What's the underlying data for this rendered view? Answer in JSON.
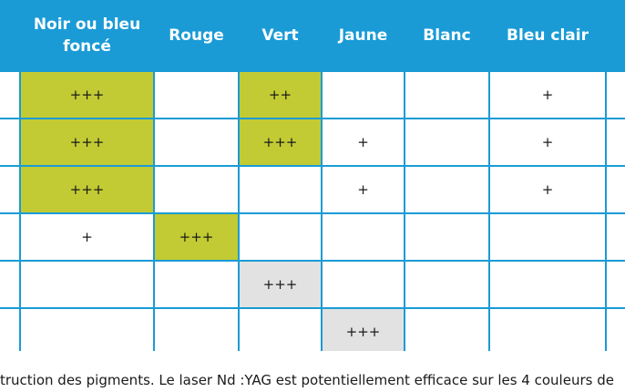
{
  "table": {
    "headers": [
      "Noir ou bleu foncé",
      "Rouge",
      "Vert",
      "Jaune",
      "Blanc",
      "Bleu clair"
    ],
    "rows": [
      [
        {
          "text": "+++",
          "fill": "green"
        },
        {
          "text": "",
          "fill": "white"
        },
        {
          "text": "++",
          "fill": "green"
        },
        {
          "text": "",
          "fill": "white"
        },
        {
          "text": "",
          "fill": "white"
        },
        {
          "text": "+",
          "fill": "white"
        }
      ],
      [
        {
          "text": "+++",
          "fill": "green"
        },
        {
          "text": "",
          "fill": "white"
        },
        {
          "text": "+++",
          "fill": "green"
        },
        {
          "text": "+",
          "fill": "white"
        },
        {
          "text": "",
          "fill": "white"
        },
        {
          "text": "+",
          "fill": "white"
        }
      ],
      [
        {
          "text": "+++",
          "fill": "green"
        },
        {
          "text": "",
          "fill": "white"
        },
        {
          "text": "",
          "fill": "white"
        },
        {
          "text": "+",
          "fill": "white"
        },
        {
          "text": "",
          "fill": "white"
        },
        {
          "text": "+",
          "fill": "white"
        }
      ],
      [
        {
          "text": "+",
          "fill": "white"
        },
        {
          "text": "+++",
          "fill": "green"
        },
        {
          "text": "",
          "fill": "white"
        },
        {
          "text": "",
          "fill": "white"
        },
        {
          "text": "",
          "fill": "white"
        },
        {
          "text": "",
          "fill": "white"
        }
      ],
      [
        {
          "text": "",
          "fill": "white"
        },
        {
          "text": "",
          "fill": "white"
        },
        {
          "text": "+++",
          "fill": "grey"
        },
        {
          "text": "",
          "fill": "white"
        },
        {
          "text": "",
          "fill": "white"
        },
        {
          "text": "",
          "fill": "white"
        }
      ],
      [
        {
          "text": "",
          "fill": "white"
        },
        {
          "text": "",
          "fill": "white"
        },
        {
          "text": "",
          "fill": "white"
        },
        {
          "text": "+++",
          "fill": "grey"
        },
        {
          "text": "",
          "fill": "white"
        },
        {
          "text": "",
          "fill": "white"
        }
      ]
    ]
  },
  "caption": "truction des pigments. Le laser Nd :YAG est potentiellement efficace sur les 4 couleurs de",
  "colors": {
    "header_blue": "#1a9bd6",
    "highlight_green": "#c2cb33",
    "highlight_grey": "#e2e2e2",
    "cell_white": "#ffffff"
  }
}
